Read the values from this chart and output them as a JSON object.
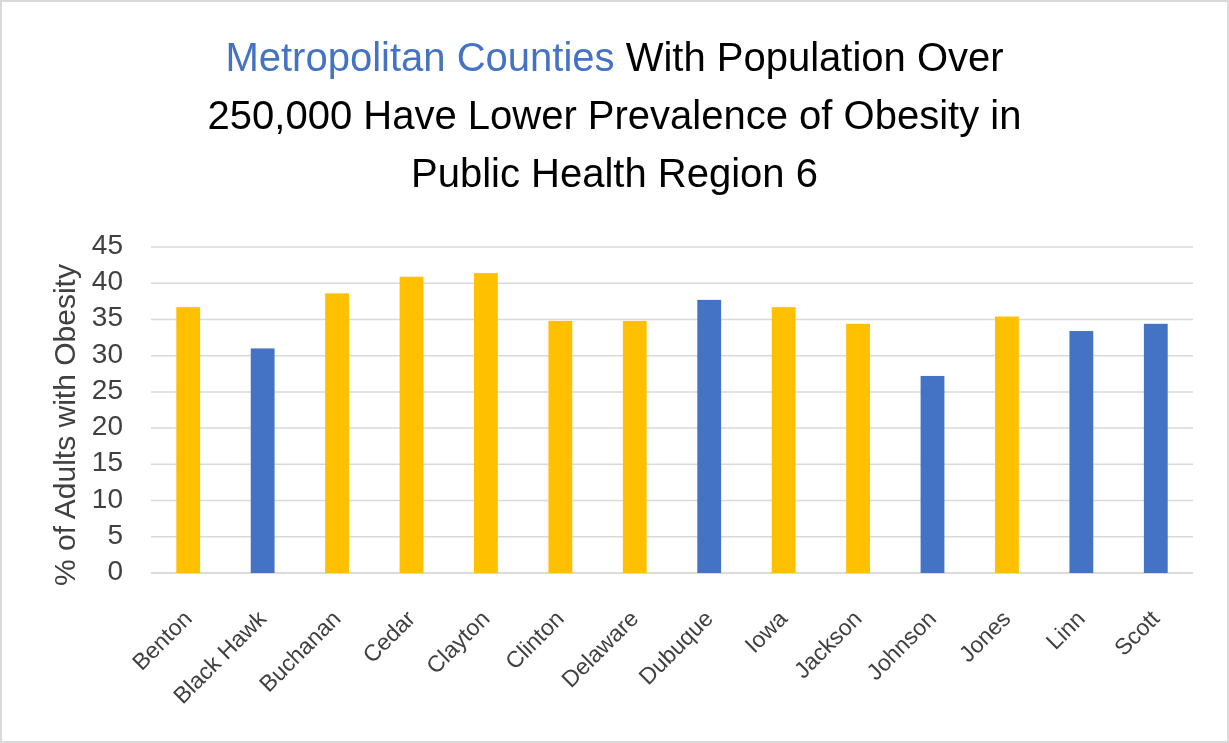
{
  "chart_data": {
    "type": "bar",
    "title": "Metropolitan Counties With Population Over 250,000 Have Lower Prevalence of Obesity in Public Health Region 6",
    "ylabel": "% of Adults with Obesity",
    "categories": [
      "Benton",
      "Black Hawk",
      "Buchanan",
      "Cedar",
      "Clayton",
      "Clinton",
      "Delaware",
      "Dubuque",
      "Iowa",
      "Jackson",
      "Johnson",
      "Jones",
      "Linn",
      "Scott"
    ],
    "values": [
      36.7,
      31.0,
      38.6,
      40.9,
      41.4,
      34.8,
      34.8,
      37.7,
      36.7,
      34.4,
      27.2,
      35.4,
      33.4,
      34.4
    ],
    "colors": [
      "#ffc000",
      "#4472c4",
      "#ffc000",
      "#ffc000",
      "#ffc000",
      "#ffc000",
      "#ffc000",
      "#4472c4",
      "#ffc000",
      "#ffc000",
      "#4472c4",
      "#ffc000",
      "#4472c4",
      "#4472c4"
    ],
    "ylim": [
      0,
      45
    ],
    "yticks": [
      0,
      5,
      10,
      15,
      20,
      25,
      30,
      35,
      40,
      45
    ],
    "grid": "y"
  }
}
